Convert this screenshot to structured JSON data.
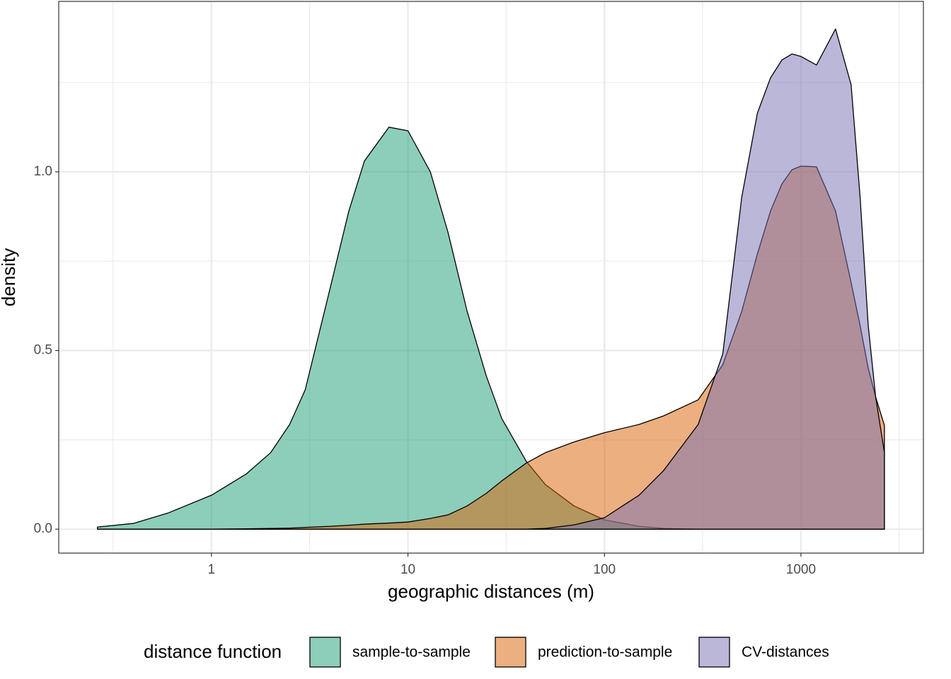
{
  "chart_data": {
    "type": "density",
    "x_label": "geographic distances (m)",
    "y_label": "density",
    "legend_title": "distance function",
    "legend_position": "bottom",
    "log_x": true,
    "grid": true,
    "x": [
      0.263,
      0.4,
      0.6,
      1,
      1.5,
      2,
      2.5,
      3,
      4,
      5,
      6,
      8,
      10,
      13,
      16,
      20,
      25,
      30,
      40,
      50,
      70,
      100,
      150,
      200,
      300,
      400,
      500,
      600,
      700,
      800,
      900,
      1000,
      1200,
      1500,
      1800,
      2000,
      2200,
      2400,
      2660
    ],
    "series": [
      {
        "name": "sample-to-sample",
        "color": "#1b9e77",
        "values": [
          0.006,
          0.016,
          0.045,
          0.095,
          0.154,
          0.214,
          0.293,
          0.39,
          0.67,
          0.89,
          1.03,
          1.125,
          1.115,
          1.0,
          0.83,
          0.61,
          0.43,
          0.31,
          0.19,
          0.125,
          0.065,
          0.026,
          0.008,
          0.002,
          0,
          0,
          0,
          0,
          0,
          0,
          0,
          0,
          0,
          0,
          0,
          0,
          0,
          0,
          0
        ]
      },
      {
        "name": "prediction-to-sample",
        "color": "#d95f02",
        "values": [
          0,
          0,
          0,
          0,
          0.001,
          0.002,
          0.003,
          0.005,
          0.008,
          0.011,
          0.014,
          0.017,
          0.02,
          0.03,
          0.04,
          0.065,
          0.1,
          0.135,
          0.185,
          0.214,
          0.244,
          0.27,
          0.293,
          0.317,
          0.362,
          0.46,
          0.61,
          0.77,
          0.89,
          0.966,
          1.006,
          1.016,
          1.014,
          0.89,
          0.69,
          0.57,
          0.45,
          0.37,
          0.29
        ]
      },
      {
        "name": "CV-distances",
        "color": "#7570b3",
        "values": [
          0,
          0,
          0,
          0,
          0,
          0,
          0,
          0,
          0,
          0,
          0,
          0,
          0,
          0,
          0,
          0,
          0,
          0,
          0,
          0.002,
          0.012,
          0.032,
          0.095,
          0.164,
          0.293,
          0.49,
          0.93,
          1.164,
          1.263,
          1.313,
          1.33,
          1.323,
          1.299,
          1.4,
          1.244,
          0.93,
          0.57,
          0.37,
          0.214
        ]
      }
    ],
    "xlim": [
      0.167,
      4200
    ],
    "xticks": [
      1,
      10,
      100,
      1000
    ],
    "xminorticks": [
      0.316,
      3.16,
      31.6,
      316,
      3162
    ],
    "ylim": [
      -0.067,
      1.477
    ],
    "yticks": [
      {
        "value": 0,
        "label": "0.0"
      },
      {
        "value": 0.5,
        "label": "0.5"
      },
      {
        "value": 1,
        "label": "1.0"
      }
    ],
    "yminorticks": [
      0.25,
      0.75,
      1.25
    ]
  }
}
